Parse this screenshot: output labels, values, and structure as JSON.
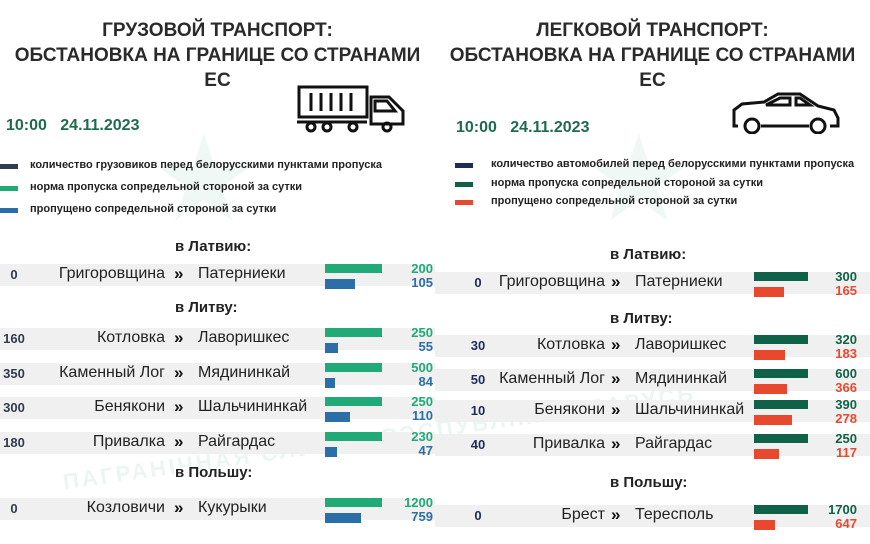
{
  "watermark": "ПАГРАНІЧНАЯ СЛУЖБА РЭСПУБЛІКІ БЕЛАРУСЬ",
  "chart_data": [
    {
      "type": "bar",
      "title_line1": "ГРУЗОВОЙ ТРАНСПОРТ:",
      "title_line2": "ОБСТАНОВКА НА ГРАНИЦЕ СО СТРАНАМИ ЕС",
      "time": "10:00",
      "date": "24.11.2023",
      "icon": "truck-icon",
      "colors": {
        "queue": "#2f3b4f",
        "norm": "#1faa78",
        "passed": "#2c6ea8"
      },
      "legend": [
        "количество грузовиков перед белорусскими пунктами пропуска",
        "норма пропуска сопредельной стороной за сутки",
        "пропущено сопредельной стороной за сутки"
      ],
      "sections": [
        {
          "label": "в Латвию:",
          "rows": [
            {
              "queue": "0",
              "from": "Григоровщина",
              "to": "Патерниеки",
              "norm": 200,
              "passed": 105
            }
          ]
        },
        {
          "label": "в Литву:",
          "rows": [
            {
              "queue": "160",
              "from": "Котловка",
              "to": "Лавоpишкес",
              "norm": 250,
              "passed": 55
            },
            {
              "queue": "350",
              "from": "Каменный Лог",
              "to": "Мядининкай",
              "norm": 500,
              "passed": 84
            },
            {
              "queue": "300",
              "from": "Бенякони",
              "to": "Шальчининкай",
              "norm": 250,
              "passed": 110
            },
            {
              "queue": "180",
              "from": "Привалка",
              "to": "Райгардас",
              "norm": 230,
              "passed": 47
            }
          ]
        },
        {
          "label": "в Польшу:",
          "rows": [
            {
              "queue": "0",
              "from": "Козловичи",
              "to": "Кукурыки",
              "norm": 1200,
              "passed": 759
            }
          ]
        }
      ]
    },
    {
      "type": "bar",
      "title_line1": "ЛЕГКОВОЙ ТРАНСПОРТ:",
      "title_line2": "ОБСТАНОВКА НА ГРАНИЦЕ СО СТРАНАМИ ЕС",
      "time": "10:00",
      "date": "24.11.2023",
      "icon": "car-icon",
      "colors": {
        "queue": "#1c2b5a",
        "norm": "#0f6247",
        "passed": "#e8492e"
      },
      "legend": [
        "количество автомобилей перед белорусскими пунктами пропуска",
        "норма пропуска сопредельной стороной за сутки",
        "пропущено сопредельной стороной за сутки"
      ],
      "sections": [
        {
          "label": "в Латвию:",
          "rows": [
            {
              "queue": "0",
              "from": "Григоровщина",
              "to": "Патерниеки",
              "norm": 300,
              "passed": 165
            }
          ]
        },
        {
          "label": "в Литву:",
          "rows": [
            {
              "queue": "30",
              "from": "Котловка",
              "to": "Лавоpишкес",
              "norm": 320,
              "passed": 183
            },
            {
              "queue": "50",
              "from": "Каменный Лог",
              "to": "Мядининкай",
              "norm": 600,
              "passed": 366
            },
            {
              "queue": "10",
              "from": "Бенякони",
              "to": "Шальчининкай",
              "norm": 390,
              "passed": 278
            },
            {
              "queue": "40",
              "from": "Привалка",
              "to": "Райгардас",
              "norm": 250,
              "passed": 117
            }
          ]
        },
        {
          "label": "в Польшу:",
          "rows": [
            {
              "queue": "0",
              "from": "Брест",
              "to": "Тересполь",
              "norm": 1700,
              "passed": 647
            }
          ]
        }
      ]
    }
  ]
}
